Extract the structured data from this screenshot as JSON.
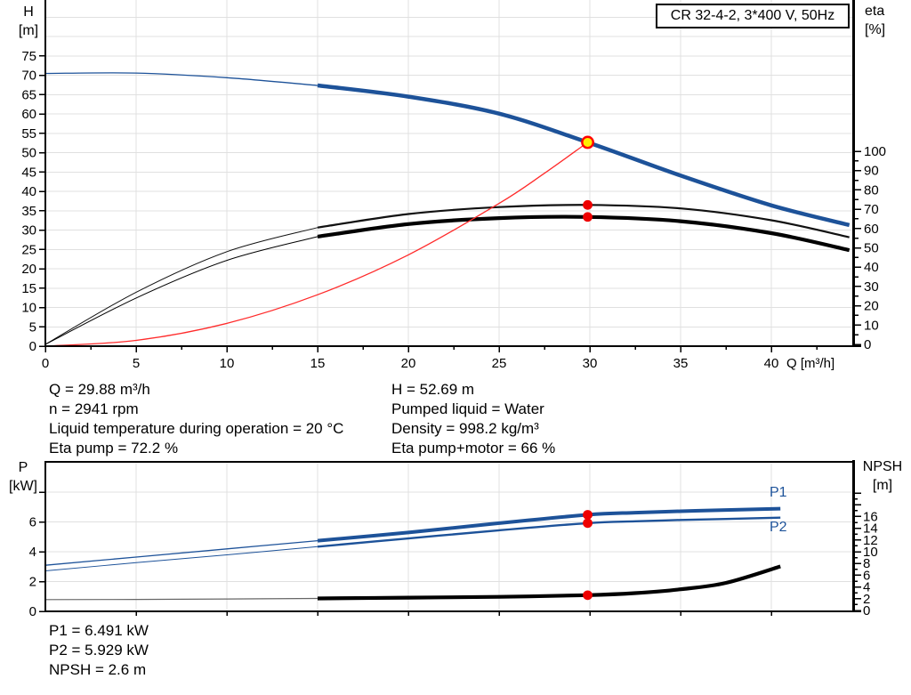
{
  "title_box": "CR 32-4-2, 3*400 V, 50Hz",
  "axis_corner_labels": {
    "top_left": [
      "H",
      "[m]"
    ],
    "top_right": [
      "eta",
      "[%]"
    ],
    "bottom_left": [
      "P",
      "[kW]"
    ],
    "bottom_right": [
      "NPSH",
      "[m]"
    ]
  },
  "x_axis_unit_label": "Q [m³/h]",
  "curve_labels": {
    "p1": "P1",
    "p2": "P2"
  },
  "info_top_left": [
    "Q = 29.88 m³/h",
    "n = 2941 rpm",
    "Liquid temperature during operation = 20 °C",
    "Eta pump = 72.2 %"
  ],
  "info_top_right": [
    "H = 52.69 m",
    "Pumped liquid = Water",
    "Density = 998.2 kg/m³",
    "Eta pump+motor = 66 %"
  ],
  "info_bottom": [
    "P1 = 6.491 kW",
    "P2 = 5.929 kW",
    "NPSH = 2.6 m"
  ],
  "colors": {
    "curve_blue": "#1d5299",
    "red_curve": "#ff2a2a",
    "dot_red": "#ee0000",
    "duty_fill": "#ffee00",
    "duty_ring": "#ff0000",
    "black": "#000000",
    "thin_gray": "#666666",
    "grid": "#e0e0e0"
  },
  "chart_data": [
    {
      "type": "line",
      "title": "CR 32-4-2, 3*400 V, 50Hz",
      "xlabel": "Q [m³/h]",
      "ylabel_left": "H [m]",
      "ylabel_right": "eta [%]",
      "xlim": [
        0,
        44.6
      ],
      "ylim_left": [
        0,
        89.5
      ],
      "ylim_right": [
        0,
        100
      ],
      "grid": true,
      "x_ticks": [
        0,
        5,
        10,
        15,
        20,
        25,
        30,
        35,
        40
      ],
      "left_ticks": [
        0,
        5,
        10,
        15,
        20,
        25,
        30,
        35,
        40,
        45,
        50,
        55,
        60,
        65,
        70,
        75
      ],
      "right_ticks": [
        0,
        10,
        20,
        30,
        40,
        50,
        60,
        70,
        80,
        90,
        100
      ],
      "duty_point": {
        "q": 29.88,
        "h": 52.69
      },
      "series": [
        {
          "name": "head",
          "axis": "left",
          "color": "#1d5299",
          "thin_width": 1.3,
          "thick_width": 4.5,
          "thick_from": 15,
          "points": [
            [
              0,
              70.5
            ],
            [
              5,
              70.6
            ],
            [
              10,
              69.4
            ],
            [
              15,
              67.4
            ],
            [
              20,
              64.5
            ],
            [
              25,
              60.1
            ],
            [
              29.88,
              52.69
            ],
            [
              35,
              44.1
            ],
            [
              40,
              36.4
            ],
            [
              44.3,
              31.3
            ]
          ]
        },
        {
          "name": "eta-pump",
          "axis": "right",
          "color": "#111111",
          "thin_width": 1,
          "thick_width": 2.2,
          "thick_from": 15,
          "points": [
            [
              0,
              0
            ],
            [
              5,
              27
            ],
            [
              10,
              48
            ],
            [
              15,
              60.5
            ],
            [
              20,
              67.5
            ],
            [
              25,
              71.1
            ],
            [
              29.88,
              72.2
            ],
            [
              35,
              70.4
            ],
            [
              40,
              64.3
            ],
            [
              44.3,
              55.5
            ]
          ]
        },
        {
          "name": "eta-pump-motor",
          "axis": "right",
          "color": "#000000",
          "thin_width": 1,
          "thick_width": 4.2,
          "thick_from": 15,
          "points": [
            [
              0,
              0
            ],
            [
              5,
              24
            ],
            [
              10,
              43.5
            ],
            [
              15,
              55.8
            ],
            [
              20,
              62.3
            ],
            [
              25,
              65.4
            ],
            [
              29.88,
              66
            ],
            [
              35,
              63.8
            ],
            [
              40,
              57.6
            ],
            [
              44.3,
              48.8
            ]
          ]
        },
        {
          "name": "system-curve",
          "axis": "left",
          "color": "#ff2a2a",
          "thin_width": 1.3,
          "points": [
            [
              0,
              0
            ],
            [
              5,
              1.5
            ],
            [
              10,
              5.9
            ],
            [
              15,
              13.3
            ],
            [
              20,
              23.6
            ],
            [
              25,
              36.9
            ],
            [
              27.5,
              44.7
            ],
            [
              29.88,
              52.69
            ]
          ]
        }
      ],
      "markers": [
        {
          "name": "duty-point",
          "axis": "left",
          "x": 29.88,
          "y": 52.69,
          "style": "duty"
        },
        {
          "name": "eta-pump-point",
          "axis": "right",
          "x": 29.88,
          "y": 72.2,
          "style": "dot"
        },
        {
          "name": "eta-pump-motor-point",
          "axis": "right",
          "x": 29.88,
          "y": 66,
          "style": "dot"
        }
      ]
    },
    {
      "type": "line",
      "ylabel_left": "P [kW]",
      "ylabel_right": "NPSH [m]",
      "xlim": [
        0,
        44.6
      ],
      "ylim_left": [
        0,
        10.1
      ],
      "ylim_right": [
        0,
        25.5
      ],
      "grid": true,
      "x_ticks": [
        5,
        10,
        15,
        20,
        25,
        30,
        35,
        40
      ],
      "left_ticks": [
        0,
        2,
        4,
        6
      ],
      "left_ticks_unlabeled": [
        8
      ],
      "right_ticks": [
        0,
        2,
        4,
        6,
        8,
        10,
        12,
        14,
        16
      ],
      "right_tick_unlabeled_max": 20,
      "series": [
        {
          "name": "p1",
          "axis": "left",
          "color": "#1d5299",
          "thin_width": 1.3,
          "thick_width": 4,
          "thick_from": 15,
          "points": [
            [
              0,
              3.1
            ],
            [
              5,
              3.65
            ],
            [
              10,
              4.2
            ],
            [
              15,
              4.75
            ],
            [
              20,
              5.3
            ],
            [
              25,
              5.93
            ],
            [
              29.88,
              6.491
            ],
            [
              32.5,
              6.63
            ],
            [
              35,
              6.73
            ],
            [
              37.5,
              6.81
            ],
            [
              40.5,
              6.9
            ]
          ]
        },
        {
          "name": "p2",
          "axis": "left",
          "color": "#1d5299",
          "thin_width": 1,
          "thick_width": 2.4,
          "thick_from": 15,
          "points": [
            [
              0,
              2.72
            ],
            [
              5,
              3.27
            ],
            [
              10,
              3.8
            ],
            [
              15,
              4.35
            ],
            [
              20,
              4.9
            ],
            [
              25,
              5.45
            ],
            [
              29.88,
              5.929
            ],
            [
              32.5,
              6.05
            ],
            [
              35,
              6.14
            ],
            [
              37.5,
              6.21
            ],
            [
              40.5,
              6.3
            ]
          ]
        },
        {
          "name": "npsh",
          "axis": "right",
          "color": "#000000",
          "thin_color": "#666666",
          "thin_width": 1.2,
          "thick_width": 4.2,
          "thick_from": 15,
          "points": [
            [
              0,
              1.85
            ],
            [
              5,
              1.88
            ],
            [
              10,
              1.95
            ],
            [
              15,
              2.05
            ],
            [
              20,
              2.18
            ],
            [
              25,
              2.32
            ],
            [
              29.88,
              2.6
            ],
            [
              32.5,
              2.95
            ],
            [
              35,
              3.6
            ],
            [
              37.5,
              4.7
            ],
            [
              40.5,
              7.5
            ]
          ]
        }
      ],
      "markers": [
        {
          "name": "p1-point",
          "axis": "left",
          "x": 29.88,
          "y": 6.491,
          "style": "dot"
        },
        {
          "name": "p2-point",
          "axis": "left",
          "x": 29.88,
          "y": 5.929,
          "style": "dot"
        },
        {
          "name": "npsh-point",
          "axis": "right",
          "x": 29.88,
          "y": 2.6,
          "style": "dot"
        }
      ]
    }
  ]
}
